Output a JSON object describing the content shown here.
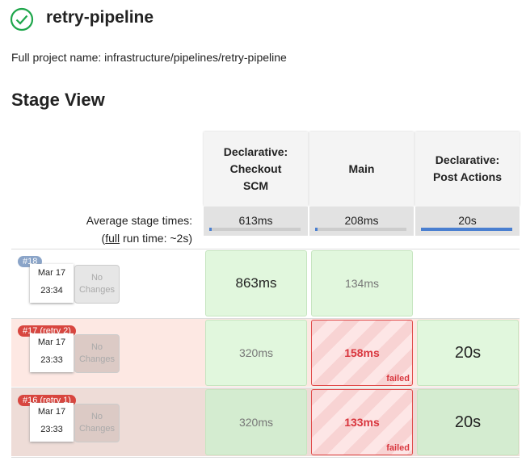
{
  "header": {
    "title": "retry-pipeline",
    "full_project_name": "Full project name: infrastructure/pipelines/retry-pipeline"
  },
  "stage_view": {
    "title": "Stage View",
    "stages": [
      "Declarative: Checkout SCM",
      "Main",
      "Declarative: Post Actions"
    ],
    "average_label": "Average stage times:",
    "full_run_time": {
      "open": "(",
      "link": "full",
      "rest": " run time: ~2s)"
    },
    "average_times": [
      "613ms",
      "208ms",
      "20s"
    ],
    "builds": [
      {
        "badge": "#18",
        "date": "Mar 17",
        "time": "23:34",
        "changes": "No Changes",
        "cells": [
          {
            "duration": "863ms"
          },
          {
            "duration": "134ms"
          }
        ]
      },
      {
        "badge": "#17 (retry 2)",
        "date": "Mar 17",
        "time": "23:33",
        "changes": "No Changes",
        "cells": [
          {
            "duration": "320ms"
          },
          {
            "duration": "158ms",
            "status": "failed"
          },
          {
            "duration": "20s"
          }
        ]
      },
      {
        "badge": "#16 (retry 1)",
        "date": "Mar 17",
        "time": "23:33",
        "changes": "No Changes",
        "cells": [
          {
            "duration": "320ms"
          },
          {
            "duration": "133ms",
            "status": "failed"
          },
          {
            "duration": "20s"
          }
        ]
      }
    ]
  }
}
